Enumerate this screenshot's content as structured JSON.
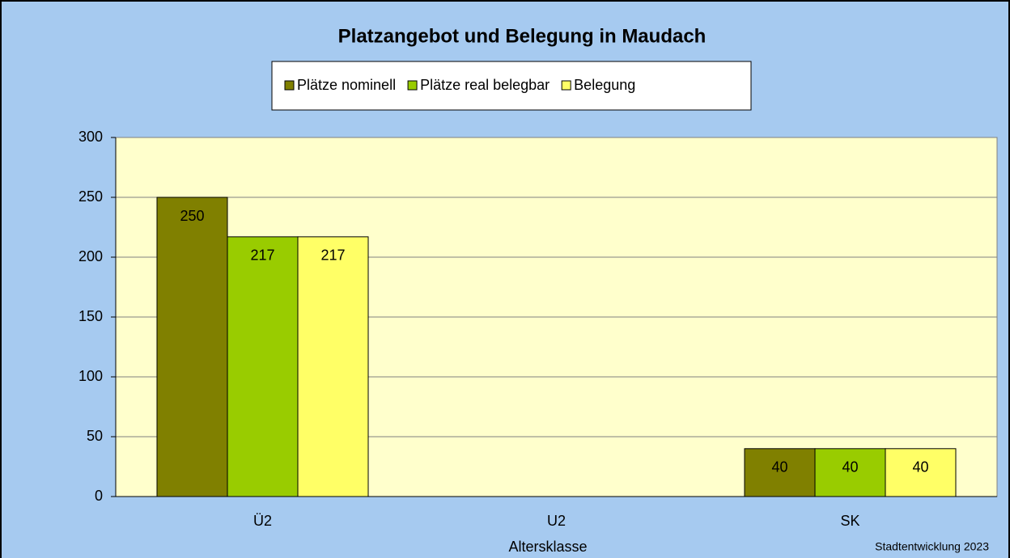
{
  "chart_data": {
    "type": "bar",
    "title": "Platzangebot und Belegung in Maudach",
    "x_label": "Altersklasse",
    "source": "Stadtentwicklung 2023",
    "categories": [
      "Ü2",
      "U2",
      "SK"
    ],
    "series": [
      {
        "name": "Plätze nominell",
        "color": "#808000",
        "values": [
          250,
          null,
          40
        ]
      },
      {
        "name": "Plätze real belegbar",
        "color": "#99cc00",
        "values": [
          217,
          null,
          40
        ]
      },
      {
        "name": "Belegung",
        "color": "#ffff66",
        "values": [
          217,
          null,
          40
        ]
      }
    ],
    "ylim": [
      0,
      300
    ],
    "yticks": [
      0,
      50,
      100,
      150,
      200,
      250,
      300
    ],
    "grid": true,
    "legend": "top"
  }
}
